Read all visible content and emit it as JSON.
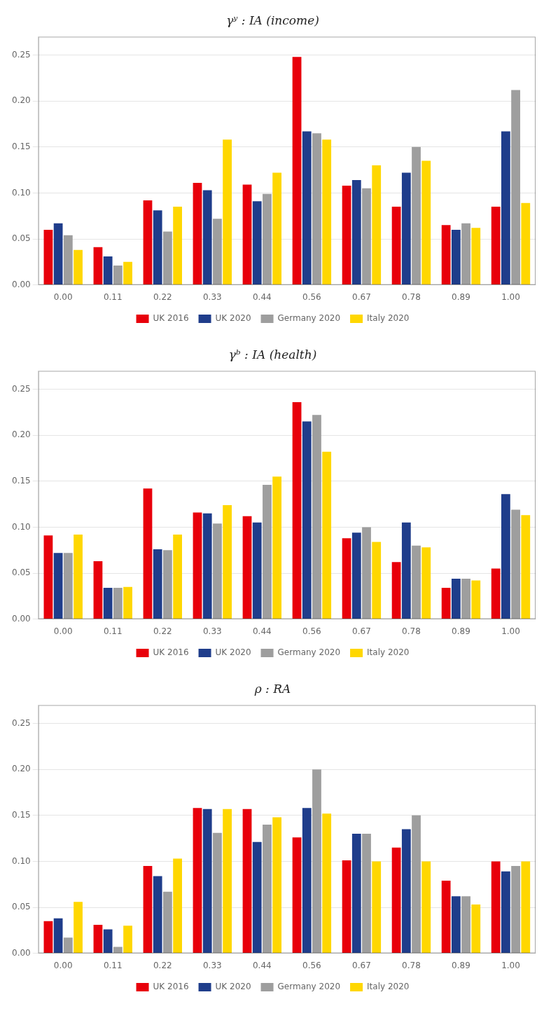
{
  "chart_data": [
    {
      "type": "bar",
      "title": "γʸ : IA (income)",
      "categories": [
        "0.00",
        "0.11",
        "0.22",
        "0.33",
        "0.44",
        "0.56",
        "0.67",
        "0.78",
        "0.89",
        "1.00"
      ],
      "series": [
        {
          "name": "UK 2016",
          "color": "#E8000B",
          "values": [
            0.06,
            0.041,
            0.092,
            0.111,
            0.109,
            0.248,
            0.108,
            0.085,
            0.065,
            0.085
          ]
        },
        {
          "name": "UK 2020",
          "color": "#1F3D8B",
          "values": [
            0.067,
            0.031,
            0.081,
            0.103,
            0.091,
            0.167,
            0.114,
            0.122,
            0.06,
            0.167
          ]
        },
        {
          "name": "Germany 2020",
          "color": "#9E9E9E",
          "values": [
            0.054,
            0.021,
            0.058,
            0.072,
            0.099,
            0.165,
            0.105,
            0.15,
            0.067,
            0.212
          ]
        },
        {
          "name": "Italy 2020",
          "color": "#FFD700",
          "values": [
            0.038,
            0.025,
            0.085,
            0.158,
            0.122,
            0.158,
            0.13,
            0.135,
            0.062,
            0.089
          ]
        }
      ],
      "ylim": [
        0.0,
        0.27
      ],
      "yticks": [
        {
          "value": 0.0,
          "label": "0.00"
        },
        {
          "value": 0.05,
          "label": "0.05"
        },
        {
          "value": 0.1,
          "label": "0.10"
        },
        {
          "value": 0.15,
          "label": "0.15"
        },
        {
          "value": 0.2,
          "label": "0.20"
        },
        {
          "value": 0.25,
          "label": "0.25"
        }
      ],
      "grid": true,
      "legend": "bottom"
    },
    {
      "type": "bar",
      "title": "γᵇ : IA (health)",
      "categories": [
        "0.00",
        "0.11",
        "0.22",
        "0.33",
        "0.44",
        "0.56",
        "0.67",
        "0.78",
        "0.89",
        "1.00"
      ],
      "series": [
        {
          "name": "UK 2016",
          "color": "#E8000B",
          "values": [
            0.091,
            0.063,
            0.142,
            0.116,
            0.112,
            0.236,
            0.088,
            0.062,
            0.034,
            0.055
          ]
        },
        {
          "name": "UK 2020",
          "color": "#1F3D8B",
          "values": [
            0.072,
            0.034,
            0.076,
            0.115,
            0.105,
            0.215,
            0.094,
            0.105,
            0.044,
            0.136
          ]
        },
        {
          "name": "Germany 2020",
          "color": "#9E9E9E",
          "values": [
            0.072,
            0.034,
            0.075,
            0.104,
            0.146,
            0.222,
            0.1,
            0.08,
            0.044,
            0.119
          ]
        },
        {
          "name": "Italy 2020",
          "color": "#FFD700",
          "values": [
            0.092,
            0.035,
            0.092,
            0.124,
            0.155,
            0.182,
            0.084,
            0.078,
            0.042,
            0.113
          ]
        }
      ],
      "ylim": [
        0.0,
        0.27
      ],
      "yticks": [
        {
          "value": 0.0,
          "label": "0.00"
        },
        {
          "value": 0.05,
          "label": "0.05"
        },
        {
          "value": 0.1,
          "label": "0.10"
        },
        {
          "value": 0.15,
          "label": "0.15"
        },
        {
          "value": 0.2,
          "label": "0.20"
        },
        {
          "value": 0.25,
          "label": "0.25"
        }
      ],
      "grid": true,
      "legend": "bottom"
    },
    {
      "type": "bar",
      "title": "ρ : RA",
      "categories": [
        "0.00",
        "0.11",
        "0.22",
        "0.33",
        "0.44",
        "0.56",
        "0.67",
        "0.78",
        "0.89",
        "1.00"
      ],
      "series": [
        {
          "name": "UK 2016",
          "color": "#E8000B",
          "values": [
            0.035,
            0.031,
            0.095,
            0.158,
            0.157,
            0.126,
            0.101,
            0.115,
            0.079,
            0.1
          ]
        },
        {
          "name": "UK 2020",
          "color": "#1F3D8B",
          "values": [
            0.038,
            0.026,
            0.084,
            0.157,
            0.121,
            0.158,
            0.13,
            0.135,
            0.062,
            0.089
          ]
        },
        {
          "name": "Germany 2020",
          "color": "#9E9E9E",
          "values": [
            0.017,
            0.007,
            0.067,
            0.131,
            0.14,
            0.2,
            0.13,
            0.15,
            0.062,
            0.095
          ]
        },
        {
          "name": "Italy 2020",
          "color": "#FFD700",
          "values": [
            0.056,
            0.03,
            0.103,
            0.157,
            0.148,
            0.152,
            0.1,
            0.1,
            0.053,
            0.1
          ]
        }
      ],
      "ylim": [
        0.0,
        0.27
      ],
      "yticks": [
        {
          "value": 0.0,
          "label": "0.00"
        },
        {
          "value": 0.05,
          "label": "0.05"
        },
        {
          "value": 0.1,
          "label": "0.10"
        },
        {
          "value": 0.15,
          "label": "0.15"
        },
        {
          "value": 0.2,
          "label": "0.20"
        },
        {
          "value": 0.25,
          "label": "0.25"
        }
      ],
      "grid": true,
      "legend": "bottom"
    }
  ]
}
